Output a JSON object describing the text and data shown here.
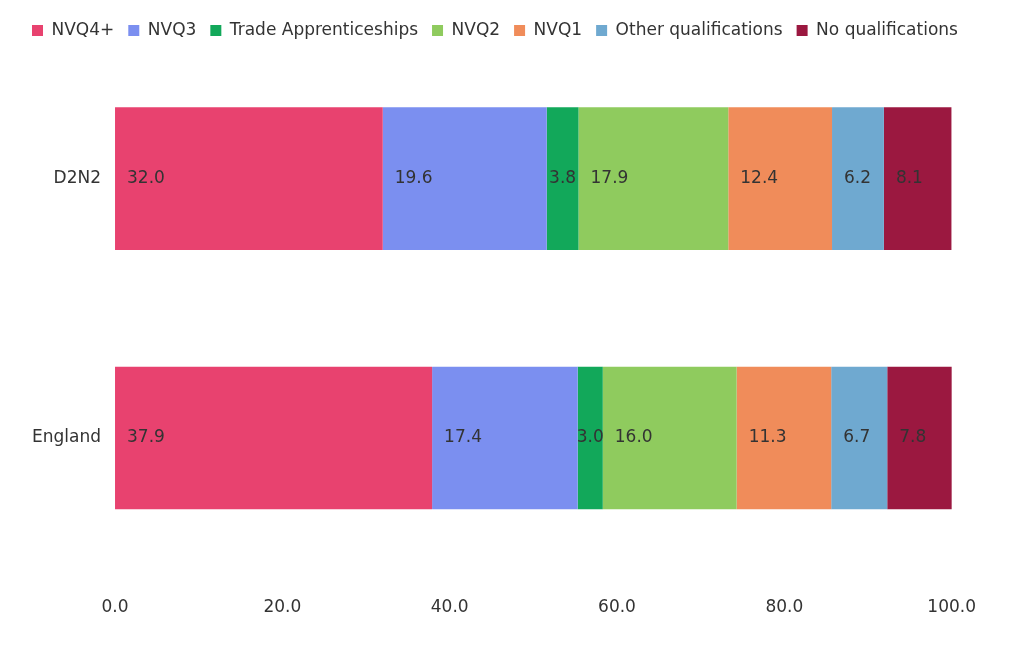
{
  "chart_data": {
    "type": "bar",
    "orientation": "horizontal",
    "stacked": true,
    "categories": [
      "D2N2",
      "England"
    ],
    "series": [
      {
        "name": "NVQ4+",
        "color": "#e8426f",
        "values": [
          32.0,
          37.9
        ],
        "value_labels": [
          "32.0",
          "37.9"
        ]
      },
      {
        "name": "NVQ3",
        "color": "#7b8ff0",
        "values": [
          19.6,
          17.4
        ],
        "value_labels": [
          "19.6",
          "17.4"
        ]
      },
      {
        "name": "Trade Apprenticeships",
        "color": "#12a85a",
        "values": [
          3.8,
          3.0
        ],
        "value_labels": [
          "3.8",
          "3.0"
        ]
      },
      {
        "name": "NVQ2",
        "color": "#8fcb5e",
        "values": [
          17.9,
          16.0
        ],
        "value_labels": [
          "17.9",
          "16.0"
        ]
      },
      {
        "name": "NVQ1",
        "color": "#f08c5a",
        "values": [
          12.4,
          11.3
        ],
        "value_labels": [
          "12.4",
          "11.3"
        ]
      },
      {
        "name": "Other qualifications",
        "color": "#6fa9d0",
        "values": [
          6.2,
          6.7
        ],
        "value_labels": [
          "6.2",
          "6.7"
        ]
      },
      {
        "name": "No qualifications",
        "color": "#9b1840",
        "values": [
          8.1,
          7.8
        ],
        "value_labels": [
          "8.1",
          "7.8"
        ]
      }
    ],
    "xlim": [
      0,
      100
    ],
    "xticks": [
      {
        "value": 0,
        "label": "0.0"
      },
      {
        "value": 20,
        "label": "20.0"
      },
      {
        "value": 40,
        "label": "40.0"
      },
      {
        "value": 60,
        "label": "60.0"
      },
      {
        "value": 80,
        "label": "80.0"
      },
      {
        "value": 100,
        "label": "100.0"
      }
    ],
    "grid": false,
    "legend": "top"
  }
}
